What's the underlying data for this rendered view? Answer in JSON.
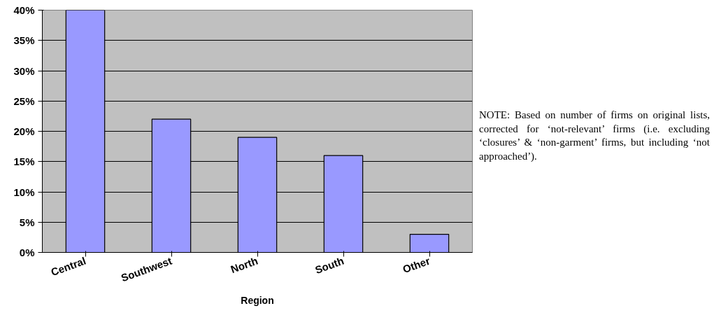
{
  "chart_data": {
    "type": "bar",
    "xlabel": "Region",
    "categories": [
      "Central",
      "Southwest",
      "North",
      "South",
      "Other"
    ],
    "values": [
      40,
      22,
      19,
      16,
      3
    ],
    "color": "#9999ff",
    "ylim": [
      0,
      40
    ],
    "yticks": [
      {
        "value": 0,
        "label": "0%"
      },
      {
        "value": 5,
        "label": "5%"
      },
      {
        "value": 10,
        "label": "10%"
      },
      {
        "value": 15,
        "label": "15%"
      },
      {
        "value": 20,
        "label": "20%"
      },
      {
        "value": 25,
        "label": "25%"
      },
      {
        "value": 30,
        "label": "30%"
      },
      {
        "value": 35,
        "label": "35%"
      },
      {
        "value": 40,
        "label": "40%"
      }
    ],
    "grid": "y",
    "annotations": [
      "NOTE: Based on number of firms on original lists, corrected for ‘not-relevant’ firms (i.e. excluding ‘closures’ & ‘non-garment’ firms, but including ‘not approached’)."
    ]
  }
}
